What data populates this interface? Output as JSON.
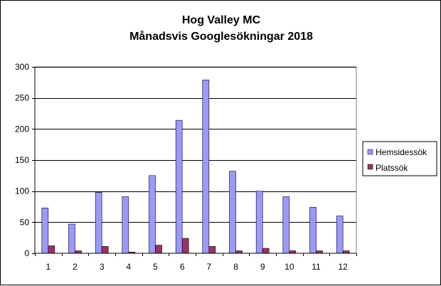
{
  "chart_data": {
    "type": "bar",
    "title": "Hog Valley MC",
    "subtitle": "Månadsvis Googlesökningar 2018",
    "categories": [
      "1",
      "2",
      "3",
      "4",
      "5",
      "6",
      "7",
      "8",
      "9",
      "10",
      "11",
      "12"
    ],
    "series": [
      {
        "name": "Hemsidessök",
        "color": "#9999ff",
        "values": [
          73,
          47,
          98,
          91,
          125,
          214,
          279,
          132,
          100,
          91,
          74,
          60
        ]
      },
      {
        "name": "Platssök",
        "color": "#993366",
        "values": [
          12,
          4,
          11,
          2,
          13,
          24,
          11,
          4,
          8,
          4,
          4,
          4
        ]
      }
    ],
    "ylim": [
      0,
      300
    ],
    "yticks": [
      0,
      50,
      100,
      150,
      200,
      250,
      300
    ],
    "ytick_labels": [
      "0",
      "50",
      "100",
      "150",
      "200",
      "250",
      "300"
    ],
    "xlabel": "",
    "ylabel": "",
    "grid": true,
    "plot_background": "#ffffff",
    "legend_position": "right"
  }
}
